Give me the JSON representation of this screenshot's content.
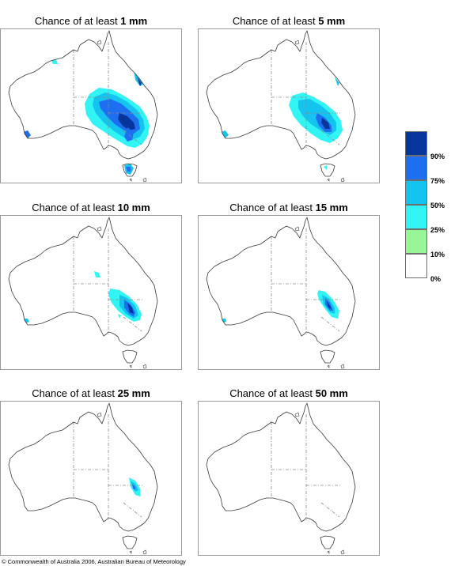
{
  "panels": [
    {
      "prefix": "Chance of at least ",
      "amount": "1 mm"
    },
    {
      "prefix": "Chance of at least ",
      "amount": "5 mm"
    },
    {
      "prefix": "Chance of at least ",
      "amount": "10 mm"
    },
    {
      "prefix": "Chance of at least ",
      "amount": "15 mm"
    },
    {
      "prefix": "Chance of at least ",
      "amount": "25 mm"
    },
    {
      "prefix": "Chance of at least ",
      "amount": "50 mm"
    }
  ],
  "legend": {
    "labels": [
      "90%",
      "75%",
      "50%",
      "25%",
      "10%",
      "0%"
    ],
    "colors": [
      "#06369c",
      "#1e6ef0",
      "#14c4ef",
      "#32f4f4",
      "#98f598",
      "#ffffff"
    ]
  },
  "footer": "© Commonwealth of Australia 2006, Australian Bureau of Meteorology"
}
